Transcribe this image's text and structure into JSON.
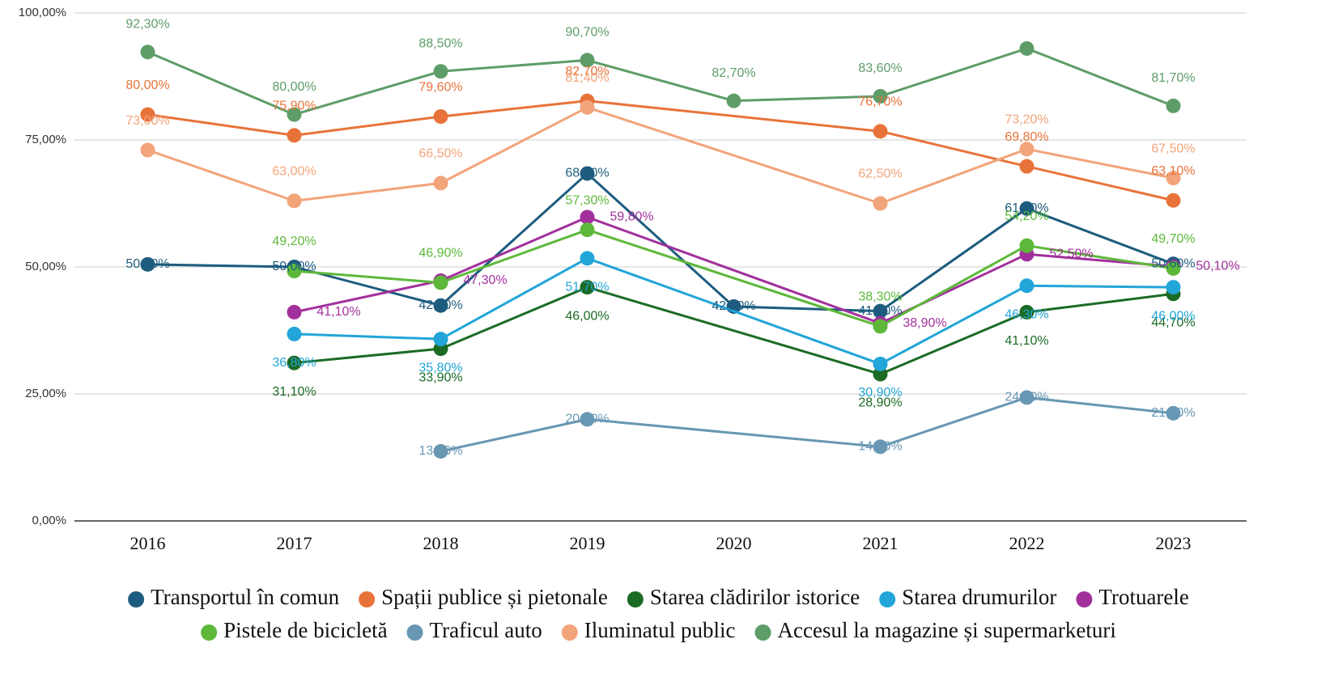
{
  "chart_data": {
    "type": "line",
    "categories": [
      "2016",
      "2017",
      "2018",
      "2019",
      "2020",
      "2021",
      "2022",
      "2023"
    ],
    "ylim": [
      0,
      100
    ],
    "yticks": [
      {
        "value": 0,
        "label": "0,00%"
      },
      {
        "value": 25,
        "label": "25,00%"
      },
      {
        "value": 50,
        "label": "50,00%"
      },
      {
        "value": 75,
        "label": "75,00%"
      },
      {
        "value": 100,
        "label": "100,00%"
      }
    ],
    "grid": true,
    "legend": "bottom",
    "series": [
      {
        "name": "Transportul în comun",
        "color": "#1d5c7e",
        "values": [
          50.5,
          50.0,
          42.4,
          68.4,
          42.2,
          41.3,
          61.5,
          50.6
        ],
        "value_labels": [
          "50,50%",
          "50,00%",
          "42,40%",
          "68,40%",
          "42,20%",
          "41,30%",
          "61,50%",
          "50,60%"
        ]
      },
      {
        "name": "Spații publice și pietonale",
        "color": "#e8733a",
        "values": [
          80.0,
          75.9,
          79.6,
          82.7,
          null,
          76.7,
          69.8,
          63.1
        ],
        "value_labels": [
          "80,00%",
          "75,90%",
          "79,60%",
          "82,70%",
          null,
          "76,70%",
          "69,80%",
          "63,10%"
        ]
      },
      {
        "name": "Starea clădirilor istorice",
        "color": "#1b6b25",
        "values": [
          null,
          31.1,
          33.9,
          46.0,
          null,
          28.9,
          41.1,
          44.7
        ],
        "value_labels": [
          null,
          "31,10%",
          "33,90%",
          "46,00%",
          null,
          "28,90%",
          "41,10%",
          "44,70%"
        ]
      },
      {
        "name": "Starea drumurilor",
        "color": "#22a5d8",
        "values": [
          null,
          36.8,
          35.8,
          51.7,
          null,
          30.9,
          46.3,
          46.0
        ],
        "value_labels": [
          null,
          "36,80%",
          "35,80%",
          "51,70%",
          null,
          "30,90%",
          "46,30%",
          "46,00%"
        ]
      },
      {
        "name": "Trotuarele",
        "color": "#a2309c",
        "values": [
          null,
          41.1,
          47.3,
          59.8,
          null,
          38.9,
          52.5,
          50.1
        ],
        "value_labels": [
          null,
          "41,10%",
          "47,30%",
          "59,80%",
          null,
          "38,90%",
          "52,50%",
          "50,10%"
        ]
      },
      {
        "name": "Pistele de bicicletă",
        "color": "#5db83a",
        "values": [
          null,
          49.2,
          46.9,
          57.3,
          null,
          38.3,
          54.2,
          49.7
        ],
        "value_labels": [
          null,
          "49,20%",
          "46,90%",
          "57,30%",
          null,
          "38,30%",
          "54,20%",
          "49,70%"
        ]
      },
      {
        "name": "Traficul auto",
        "color": "#6897b3",
        "values": [
          null,
          null,
          13.7,
          20.0,
          null,
          14.6,
          24.3,
          21.2
        ],
        "value_labels": [
          null,
          null,
          "13,70%",
          "20,00%",
          null,
          "14,60%",
          "24,30%",
          "21,20%"
        ]
      },
      {
        "name": "Iluminatul public",
        "color": "#f2a47a",
        "values": [
          73.0,
          63.0,
          66.5,
          81.4,
          null,
          62.5,
          73.2,
          67.5
        ],
        "value_labels": [
          "73,00%",
          "63,00%",
          "66,50%",
          "81,40%",
          null,
          "62,50%",
          "73,20%",
          "67,50%"
        ]
      },
      {
        "name": "Accesul la magazine și supermarketuri",
        "color": "#5e9d68",
        "values": [
          92.3,
          80.0,
          88.5,
          90.7,
          82.7,
          83.6,
          93.0,
          81.7
        ],
        "value_labels": [
          "92,30%",
          "80,00%",
          "88,50%",
          "90,70%",
          "82,70%",
          "83,60%",
          null,
          "81,70%"
        ]
      }
    ]
  }
}
